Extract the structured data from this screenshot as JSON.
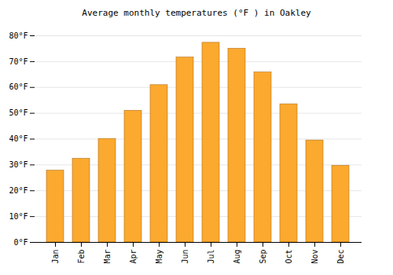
{
  "chart_data": {
    "type": "bar",
    "title": "Average monthly temperatures (°F ) in Oakley",
    "categories": [
      "Jan",
      "Feb",
      "Mar",
      "Apr",
      "May",
      "Jun",
      "Jul",
      "Aug",
      "Sep",
      "Oct",
      "Nov",
      "Dec"
    ],
    "values": [
      27.8,
      32.4,
      40.1,
      51.0,
      60.9,
      71.6,
      77.3,
      75.0,
      65.8,
      53.5,
      39.5,
      29.7
    ],
    "color": "#fba92f",
    "ylim": [
      0,
      80
    ],
    "yticks": [
      {
        "value": 0,
        "label": "0°F"
      },
      {
        "value": 10,
        "label": "10°F"
      },
      {
        "value": 20,
        "label": "20°F"
      },
      {
        "value": 30,
        "label": "30°F"
      },
      {
        "value": 40,
        "label": "40°F"
      },
      {
        "value": 50,
        "label": "50°F"
      },
      {
        "value": 60,
        "label": "60°F"
      },
      {
        "value": 70,
        "label": "70°F"
      },
      {
        "value": 80,
        "label": "80°F"
      }
    ],
    "grid": true
  }
}
